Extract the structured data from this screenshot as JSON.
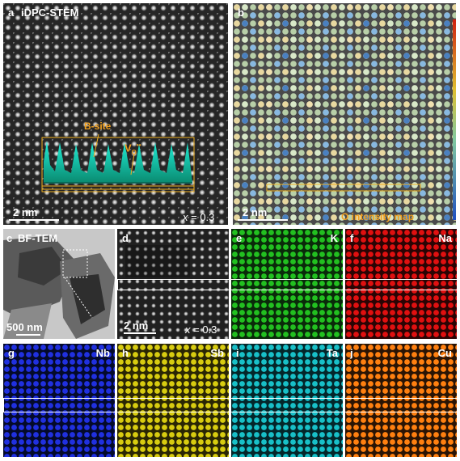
{
  "panels": {
    "a": {
      "letter": "a",
      "title": "iDPC-STEM",
      "scalebar": "2 nm",
      "x_var": "x",
      "x_value": "= 0.3",
      "bsite": "B-site",
      "vo_base": "V",
      "vo_sub": "O",
      "vo_sup": "••"
    },
    "b": {
      "letter": "b",
      "scalebar": "2 nm",
      "map_label": "O intensity map"
    },
    "c": {
      "letter": "c",
      "title": "BF-TEM",
      "scalebar": "500 nm"
    },
    "d": {
      "letter": "d",
      "scalebar": "2 nm",
      "x_var": "x",
      "x_value": "= 0.3"
    },
    "e": {
      "letter": "e",
      "element": "K",
      "color": "#22c020"
    },
    "f": {
      "letter": "f",
      "element": "Na",
      "color": "#e01010"
    },
    "g": {
      "letter": "g",
      "element": "Nb",
      "color": "#2030e0"
    },
    "h": {
      "letter": "h",
      "element": "Sb",
      "color": "#d8cc10"
    },
    "i": {
      "letter": "i",
      "element": "Ta",
      "color": "#18c0c8"
    },
    "j": {
      "letter": "j",
      "element": "Cu",
      "color": "#ff8010"
    }
  }
}
